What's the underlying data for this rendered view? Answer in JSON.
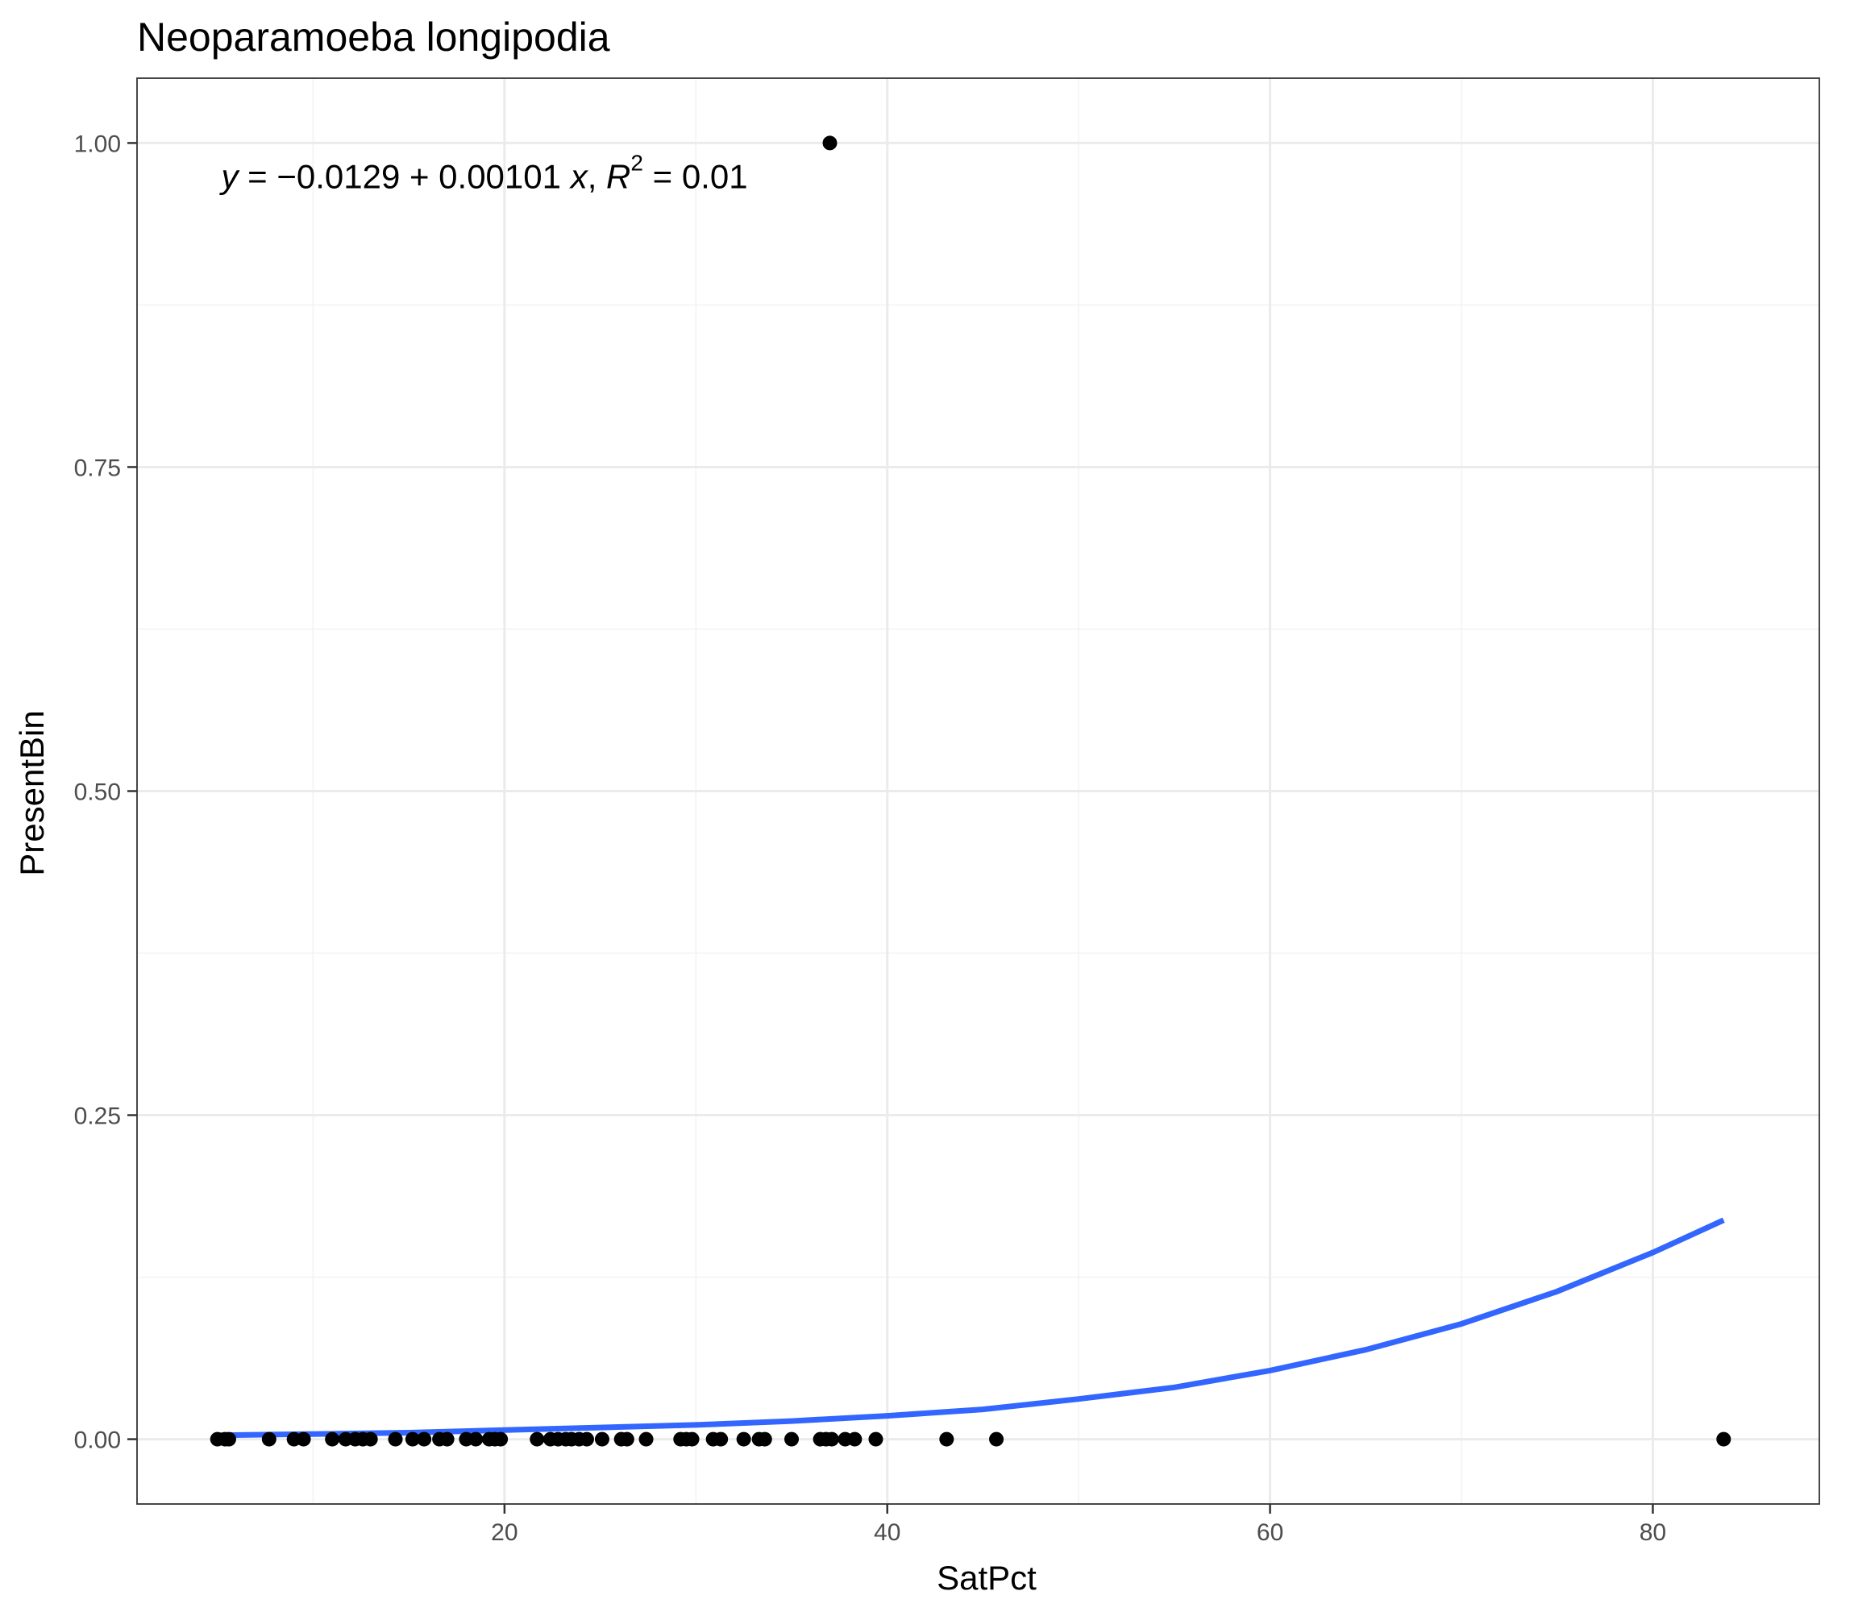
{
  "chart_data": {
    "type": "scatter",
    "title": "Neoparamoeba longipodia",
    "xlabel": "SatPct",
    "ylabel": "PresentBin",
    "xlim": [
      0.8,
      88.7
    ],
    "ylim": [
      -0.05,
      1.05
    ],
    "x_ticks": [
      20,
      40,
      60,
      80
    ],
    "y_ticks": [
      0,
      0.25,
      0.5,
      0.75,
      1
    ],
    "x_tick_labels": [
      "20",
      "40",
      "60",
      "80"
    ],
    "y_tick_labels": [
      "0.00",
      "0.25",
      "0.50",
      "0.75",
      "1.00"
    ],
    "grid": true,
    "legend": "none",
    "annotation": {
      "text_parts": [
        "y",
        " = −0.0129 + 0.00101 ",
        "x",
        ", ",
        "R",
        "2",
        " = 0.01"
      ],
      "position_data": [
        5.2,
        0.965
      ]
    },
    "series": [
      {
        "kind": "points",
        "color": "#000000",
        "x": [
          5.0,
          5.4,
          5.6,
          7.7,
          9.0,
          9.5,
          11.0,
          11.7,
          12.2,
          12.6,
          13.0,
          14.3,
          15.2,
          15.8,
          16.6,
          17.0,
          18.0,
          18.5,
          19.2,
          19.5,
          19.8,
          21.7,
          22.4,
          22.8,
          23.2,
          23.5,
          23.9,
          24.3,
          25.1,
          26.1,
          26.4,
          27.4,
          29.2,
          29.5,
          29.8,
          30.9,
          31.3,
          32.5,
          33.3,
          33.6,
          35.0,
          36.5,
          36.8,
          37.1,
          37.8,
          38.3,
          39.4,
          43.1,
          45.7,
          83.7,
          37.0
        ],
        "y": [
          0,
          0,
          0,
          0,
          0,
          0,
          0,
          0,
          0,
          0,
          0,
          0,
          0,
          0,
          0,
          0,
          0,
          0,
          0,
          0,
          0,
          0,
          0,
          0,
          0,
          0,
          0,
          0,
          0,
          0,
          0,
          0,
          0,
          0,
          0,
          0,
          0,
          0,
          0,
          0,
          0,
          0,
          0,
          0,
          0,
          0,
          0,
          0,
          0,
          0,
          1
        ]
      },
      {
        "kind": "fit-line",
        "color": "#3366FF",
        "x": [
          5,
          10,
          15,
          20,
          25,
          30,
          35,
          40,
          45,
          50,
          55,
          60,
          65,
          70,
          75,
          80,
          83.7
        ],
        "y": [
          0.003,
          0.004,
          0.005,
          0.007,
          0.009,
          0.011,
          0.014,
          0.018,
          0.023,
          0.031,
          0.04,
          0.053,
          0.069,
          0.089,
          0.114,
          0.144,
          0.169
        ]
      }
    ]
  }
}
